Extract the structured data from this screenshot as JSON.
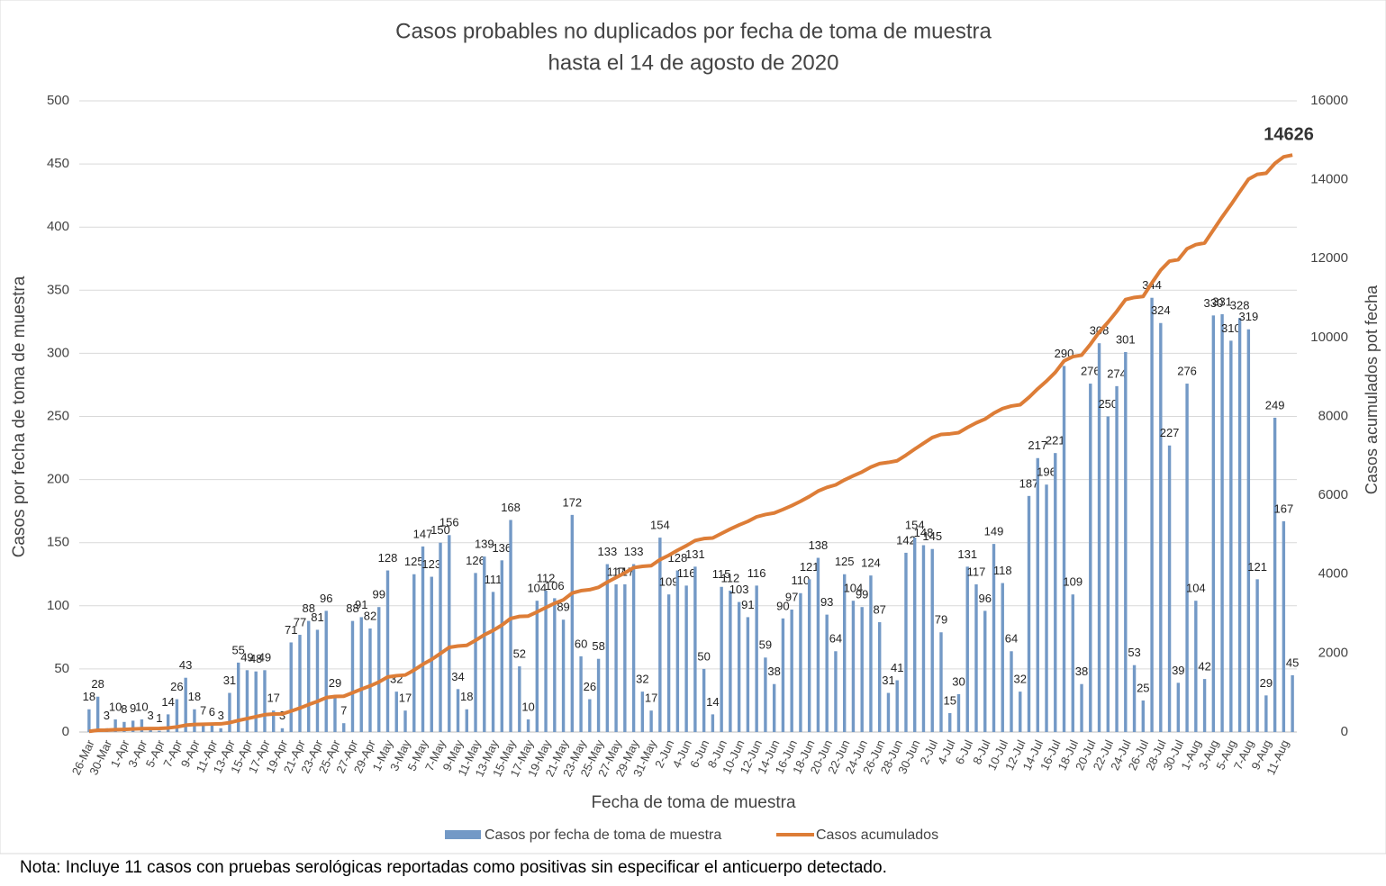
{
  "chart_data": {
    "type": "bar-line",
    "title": "Casos probables no duplicados por fecha de toma de muestra",
    "subtitle": "hasta el  14 de agosto de 2020",
    "x_label": "Fecha de toma de muestra",
    "y_label": "Casos por fecha de toma de muestra",
    "y2_label": "Casos acumulados pot fecha",
    "note": "Nota: Incluye 11 casos con pruebas serológicas reportadas como positivas sin especificar el anticuerpo detectado.",
    "categories": [
      "26-Mar",
      null,
      "30-Mar",
      null,
      "1-Apr",
      null,
      "3-Apr",
      null,
      "5-Apr",
      null,
      "7-Apr",
      null,
      "9-Apr",
      null,
      "11-Apr",
      null,
      "13-Apr",
      null,
      "15-Apr",
      null,
      "17-Apr",
      null,
      "19-Apr",
      null,
      "21-Apr",
      null,
      "23-Apr",
      null,
      "25-Apr",
      null,
      "27-Apr",
      null,
      "29-Apr",
      null,
      "1-May",
      null,
      "3-May",
      null,
      "5-May",
      null,
      "7-May",
      null,
      "9-May",
      null,
      "11-May",
      null,
      "13-May",
      null,
      "15-May",
      null,
      "17-May",
      null,
      "19-May",
      null,
      "21-May",
      null,
      "23-May",
      null,
      "25-May",
      null,
      "27-May",
      null,
      "29-May",
      null,
      "31-May",
      null,
      "2-Jun",
      null,
      "4-Jun",
      null,
      "6-Jun",
      null,
      "8-Jun",
      null,
      "10-Jun",
      null,
      "12-Jun",
      null,
      "14-Jun",
      null,
      "16-Jun",
      null,
      "18-Jun",
      null,
      "20-Jun",
      null,
      "22-Jun",
      null,
      "24-Jun",
      null,
      "26-Jun",
      null,
      "28-Jun",
      null,
      "30-Jun",
      null,
      "2-Jul",
      null,
      "4-Jul",
      null,
      "6-Jul",
      null,
      "8-Jul",
      null,
      "10-Jul",
      null,
      "12-Jul",
      null,
      "14-Jul",
      null,
      "16-Jul",
      null,
      "18-Jul",
      null,
      "20-Jul",
      null,
      "22-Jul",
      null,
      "24-Jul",
      null,
      "26-Jul",
      null,
      "28-Jul",
      null,
      "30-Jul",
      null,
      "1-Aug",
      null,
      "3-Aug",
      null,
      "5-Aug",
      null,
      "7-Aug",
      null,
      "9-Aug",
      null,
      "11-Aug",
      null
    ],
    "series": [
      {
        "name": "Casos por fecha de toma de muestra",
        "kind": "bar",
        "color": "#7399c6",
        "values": [
          18,
          28,
          3,
          10,
          8,
          9,
          10,
          3,
          1,
          14,
          26,
          43,
          18,
          7,
          6,
          3,
          31,
          55,
          49,
          48,
          49,
          17,
          3,
          71,
          77,
          88,
          81,
          96,
          29,
          7,
          88,
          91,
          82,
          99,
          128,
          32,
          17,
          125,
          147,
          123,
          150,
          156,
          34,
          18,
          126,
          139,
          111,
          136,
          168,
          52,
          10,
          104,
          112,
          106,
          89,
          172,
          60,
          26,
          58,
          133,
          117,
          117,
          133,
          32,
          17,
          154,
          109,
          128,
          116,
          131,
          50,
          14,
          115,
          112,
          103,
          91,
          116,
          59,
          38,
          90,
          97,
          110,
          121,
          138,
          93,
          64,
          125,
          104,
          99,
          124,
          87,
          31,
          41,
          142,
          154,
          148,
          145,
          79,
          15,
          30,
          131,
          117,
          96,
          149,
          118,
          64,
          32,
          187,
          217,
          196,
          221,
          290,
          109,
          38,
          276,
          308,
          250,
          274,
          301,
          53,
          25,
          344,
          324,
          227,
          39,
          276,
          104,
          42,
          330,
          331,
          310,
          328,
          319,
          121,
          29,
          249,
          167,
          45
        ]
      },
      {
        "name": "Casos acumulados",
        "kind": "line",
        "axis": "y2",
        "color": "#dd7d37",
        "values": [
          18,
          46,
          49,
          59,
          67,
          76,
          86,
          89,
          90,
          104,
          130,
          173,
          191,
          198,
          204,
          207,
          238,
          293,
          342,
          390,
          439,
          456,
          459,
          530,
          607,
          695,
          776,
          872,
          901,
          908,
          996,
          1087,
          1169,
          1268,
          1396,
          1428,
          1445,
          1570,
          1717,
          1840,
          1990,
          2146,
          2180,
          2198,
          2324,
          2463,
          2574,
          2710,
          2878,
          2930,
          2940,
          3044,
          3156,
          3262,
          3351,
          3523,
          3583,
          3609,
          3667,
          3800,
          3917,
          4034,
          4167,
          4199,
          4216,
          4370,
          4479,
          4607,
          4723,
          4854,
          4904,
          4918,
          5033,
          5145,
          5248,
          5339,
          5455,
          5514,
          5552,
          5642,
          5739,
          5849,
          5970,
          6108,
          6201,
          6265,
          6390,
          6494,
          6593,
          6717,
          6804,
          6835,
          6876,
          7018,
          7172,
          7320,
          7465,
          7544,
          7559,
          7589,
          7720,
          7837,
          7933,
          8082,
          8200,
          8264,
          8296,
          8483,
          8700,
          8896,
          9117,
          9407,
          9516,
          9554,
          9830,
          10138,
          10388,
          10662,
          10963,
          11016,
          11041,
          11385,
          11709,
          11936,
          11975,
          12251,
          12355,
          12397,
          12727,
          13058,
          13368,
          13696,
          14015,
          14136,
          14165,
          14414,
          14581,
          14626
        ]
      }
    ],
    "ylim": [
      0,
      500
    ],
    "yticks": [
      0,
      50,
      100,
      150,
      200,
      250,
      300,
      350,
      400,
      450,
      500
    ],
    "y2lim": [
      0,
      16000
    ],
    "y2ticks": [
      0,
      2000,
      4000,
      6000,
      8000,
      10000,
      12000,
      14000,
      16000
    ],
    "grid": true,
    "legend": "bottom"
  }
}
